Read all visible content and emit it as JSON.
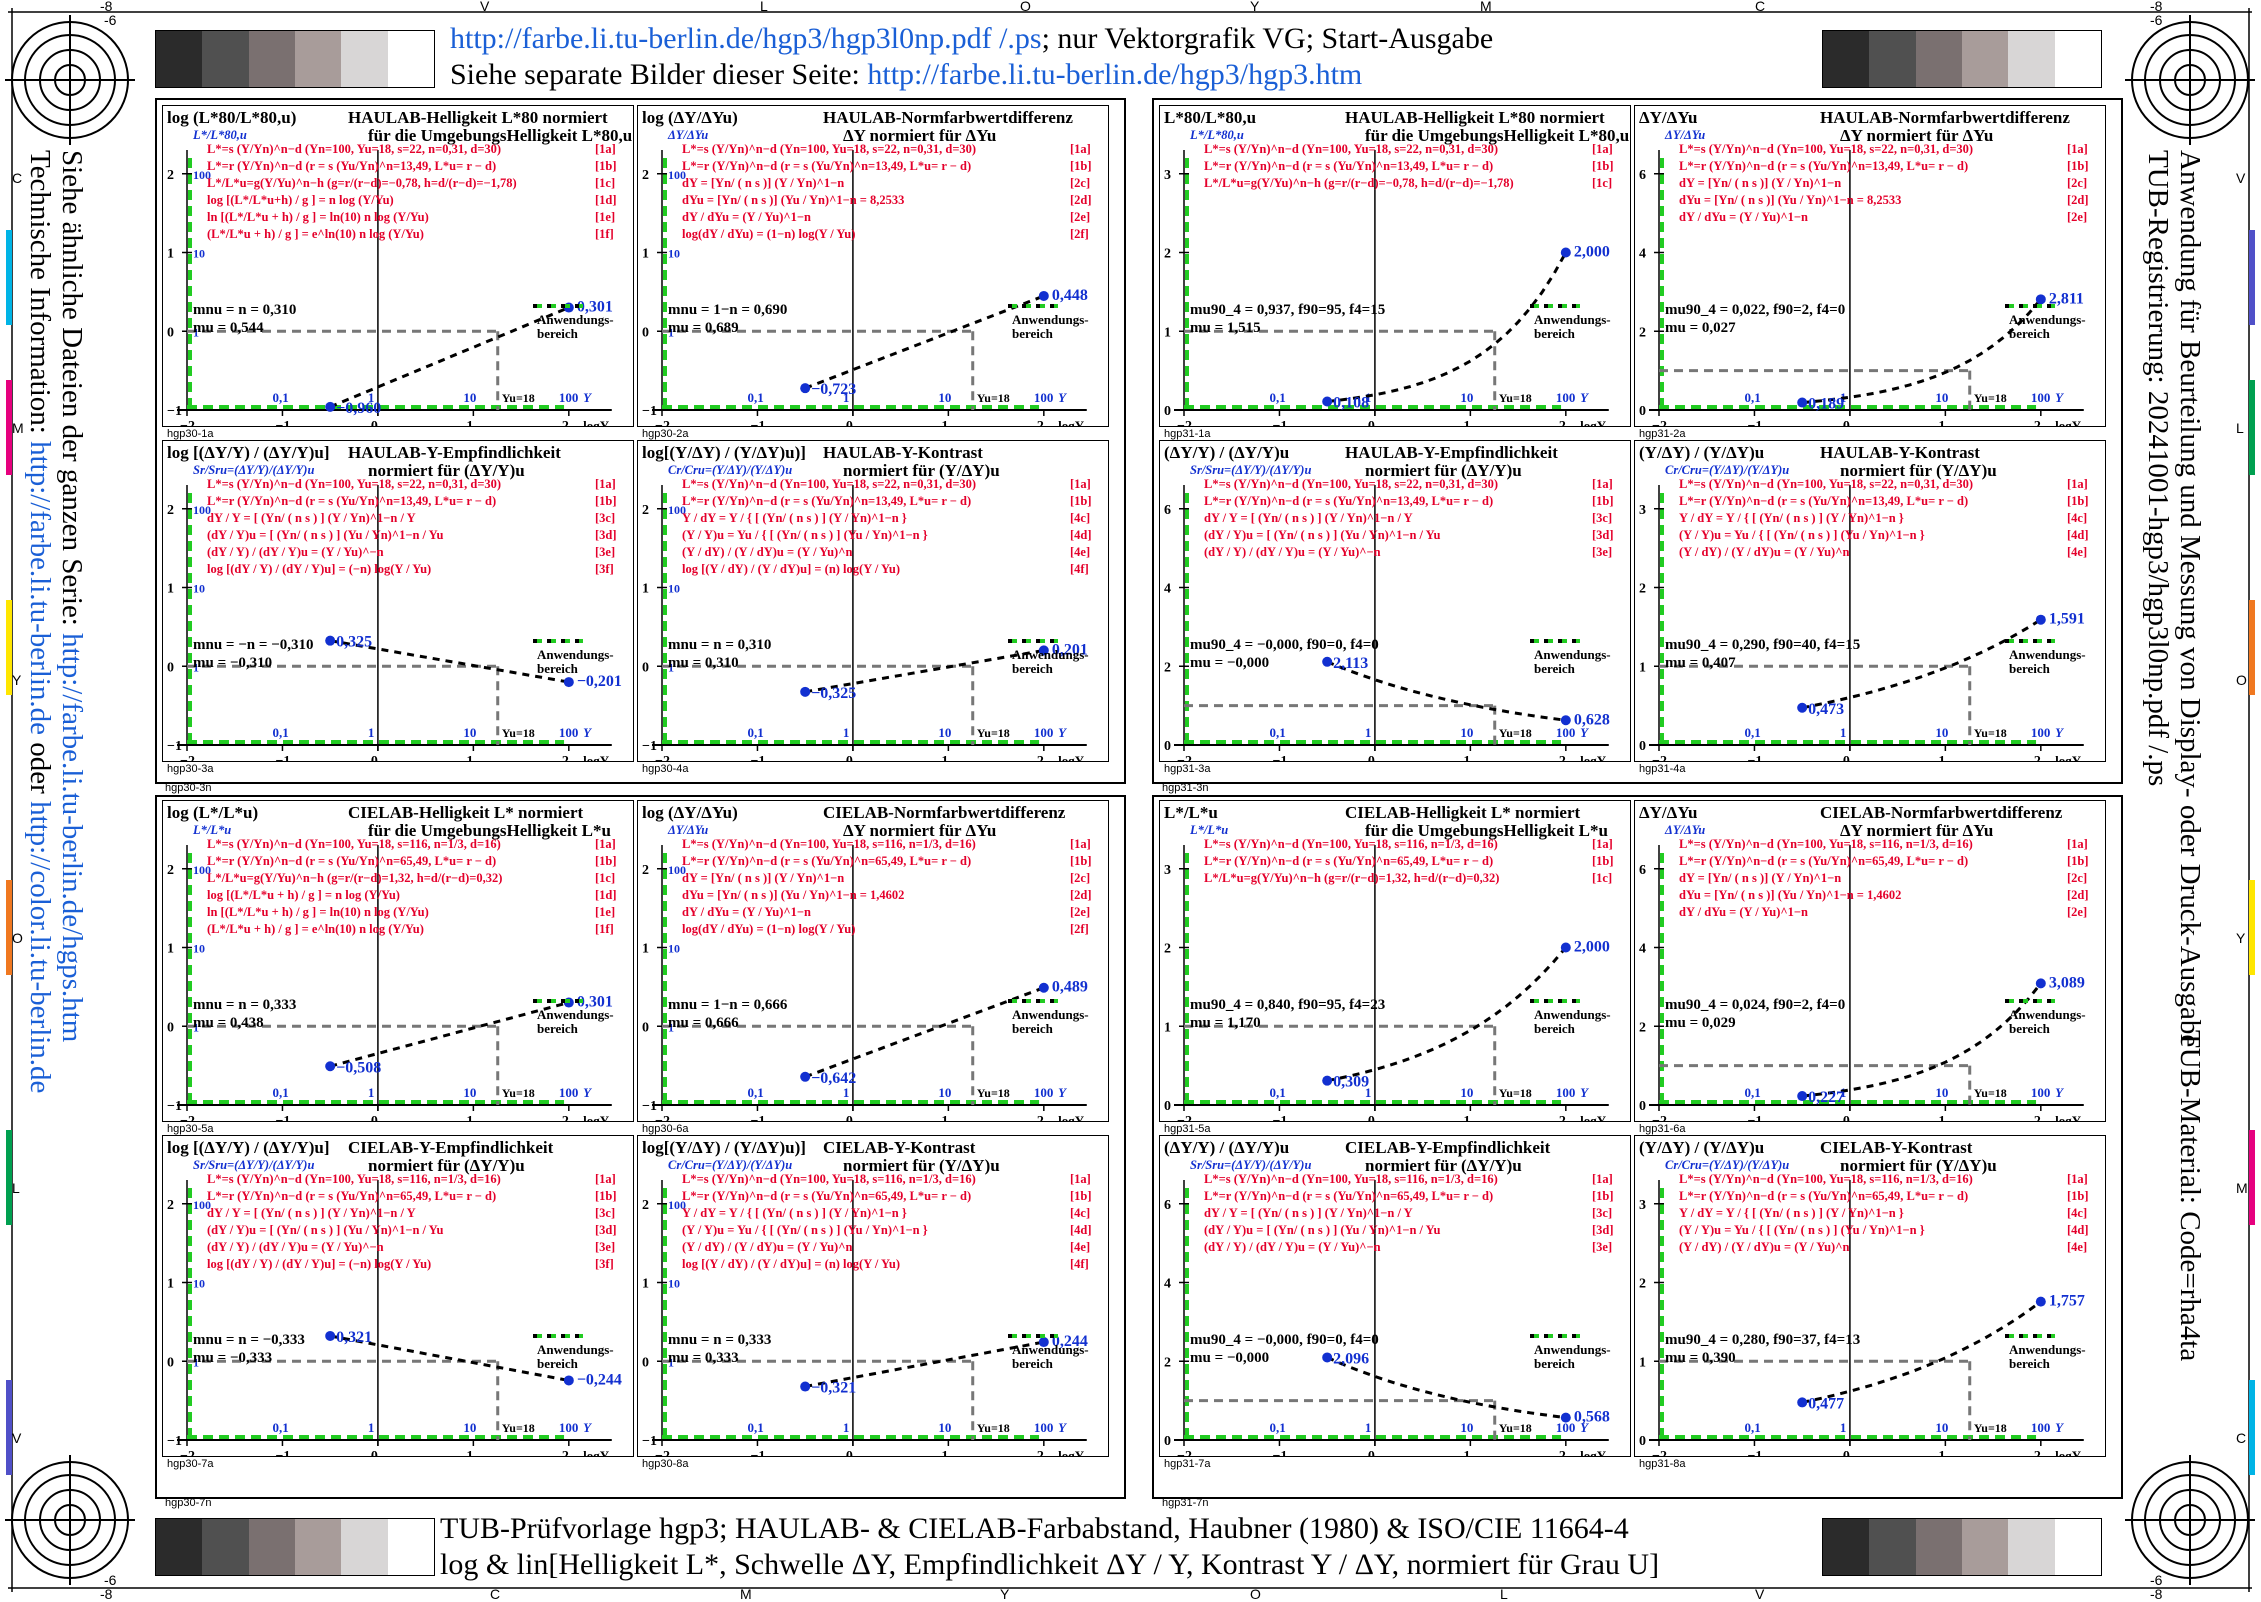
{
  "header": {
    "line1_link": "http://farbe.li.tu-berlin.de/hgp3/hgp3l0np.pdf /.ps",
    "line1_text": "; nur Vektorgrafik VG; Start-Ausgabe",
    "line2_text": "Siehe separate Bilder dieser Seite: ",
    "line2_link": "http://farbe.li.tu-berlin.de/hgp3/hgp3.htm"
  },
  "footer": {
    "line1": "TUB-Prüfvorlage hgp3; HAULAB- & CIELAB-Farbabstand, Haubner (1980) & ISO/CIE 11664-4",
    "line2": "log & lin[Helligkeit L*, Schwelle ΔY, Empfindlichkeit ΔY / Y, Kontrast Y / ΔY, normiert für Grau U]"
  },
  "left_side": {
    "line1_text": "Siehe ähnliche Dateien der ganzen Serie: ",
    "line1_link": "http://farbe.li.tu-berlin.de/hgps.htm",
    "line2_text": "Technische Information: ",
    "line2_link1": "http://farbe.li.tu-berlin.de",
    "line2_mid": " oder ",
    "line2_link2": "http://color.li.tu-berlin.de"
  },
  "right_side": {
    "line1": "TUB-Registrierung: 20241001-hgp3/hgp3l0np.pdf /.ps",
    "line2": "Anwendung für Beurteilung und Messung von Display- oder Druck-Ausgabe",
    "line3": "TUB-Material: Code=rha4ta"
  },
  "edge_labels": {
    "top": [
      "-8",
      "V",
      "L",
      "O",
      "Y",
      "M",
      "C",
      "-8"
    ],
    "top_inner": [
      "-6",
      "-6"
    ],
    "bottom": [
      "-8",
      "C",
      "M",
      "Y",
      "O",
      "L",
      "V",
      "-8"
    ],
    "bottom_inner": [
      "-6",
      "-6"
    ],
    "left": [
      "C",
      "M",
      "Y",
      "O",
      "L",
      "V"
    ],
    "right": [
      "V",
      "L",
      "O",
      "Y",
      "M",
      "C"
    ]
  },
  "gray_steps": [
    "#2b2b2b",
    "#505050",
    "#7a7070",
    "#a89c9a",
    "#d8d6d6",
    "#ffffff"
  ],
  "anwendung": "Anwendungs-",
  "anwendung2": "bereich",
  "yu_label": "Yu=18",
  "colors": {
    "blue": "#1230d0",
    "red": "#e4002b",
    "green": "#22cc22"
  },
  "panels": [
    {
      "id": "hgp30-1a",
      "ylab": "log (L*80/L*80,u)",
      "t1": "HAULAB-Helligkeit L*80 normiert",
      "t2": "für die UmgebungsHelligkeit L*80,u",
      "yaxlab": "L*/L*80,u",
      "forms": [
        "L*=s (Y/Yn)^n−d (Yn=100, Yu=18, s=22, n=0,31, d=30)",
        "L*=r (Y/Yn)^n−d (r = s (Yu/Yn)^n=13,49, L*u= r − d)",
        "L*/L*u=g(Y/Yu)^n−h (g=r/(r−d)=−0,78, h=d/(r−d)=−1,78)",
        "log [(L*/L*u+h) / g ] = n log (Y/Yu)",
        "ln [(L*/L*u + h) / g ] = ln(10) n log (Y/Yu)",
        "(L*/L*u + h) / g ] = e^ln(10) n log (Y/Yu)"
      ],
      "tags": [
        "[1a]",
        "[1b]",
        "[1c]",
        "[1d]",
        "[1e]",
        "[1f]"
      ],
      "n1": "mnu = n = 0,310",
      "n2": "mu = 0,544",
      "pv1": "−0,960",
      "pv2": "0,301",
      "kind": "log",
      "p1": -0.96,
      "p2": 0.301,
      "yref": 0,
      "sub": "hgp30-1a"
    },
    {
      "id": "hgp30-2a",
      "ylab": "log (ΔY/ΔYu)",
      "t1": "HAULAB-Normfarbwertdifferenz",
      "t2": "ΔY normiert für ΔYu",
      "yaxlab": "ΔY/ΔYu",
      "forms": [
        "L*=s (Y/Yn)^n−d (Yn=100, Yu=18, s=22, n=0,31, d=30)",
        "L*=r (Y/Yn)^n−d (r = s (Yu/Yn)^n=13,49, L*u= r − d)",
        "dY = [Yn/ ( n s )] (Y / Yn)^1−n",
        "dYu = [Yn/ ( n s )] (Yu / Yn)^1−n = 8,2533",
        "dY / dYu = (Y / Yu)^1−n",
        "log(dY / dYu) = (1−n) log(Y / Yu)"
      ],
      "tags": [
        "[1a]",
        "[1b]",
        "[2c]",
        "[2d]",
        "[2e]",
        "[2f]"
      ],
      "n1": "mnu = 1−n = 0,690",
      "n2": "mu = 0,689",
      "pv1": "−0,723",
      "pv2": "0,448",
      "kind": "log",
      "p1": -0.723,
      "p2": 0.448,
      "yref": 0,
      "sub": "hgp30-2a"
    },
    {
      "id": "hgp31-1a",
      "ylab": "L*80/L*80,u",
      "t1": "HAULAB-Helligkeit L*80 normiert",
      "t2": "für die UmgebungsHelligkeit L*80,u",
      "yaxlab": "L*/L*80,u",
      "forms": [
        "L*=s (Y/Yn)^n−d (Yn=100, Yu=18, s=22, n=0,31, d=30)",
        "L*=r (Y/Yn)^n−d (r = s (Yu/Yn)^n=13,49, L*u= r − d)",
        "L*/L*u=g(Y/Yu)^n−h (g=r/(r−d)=−0,78, h=d/(r−d)=−1,78)"
      ],
      "tags": [
        "[1a]",
        "[1b]",
        "[1c]"
      ],
      "n1": "mu90_4 = 0,937, f90=95, f4=15",
      "n2": "mu = 1,515",
      "pv1": "0,108",
      "pv2": "2,000",
      "kind": "lin3",
      "p1": 0.108,
      "p2": 2.0,
      "yref": 1,
      "sub": "hgp31-1a"
    },
    {
      "id": "hgp31-2a",
      "ylab": "ΔY/ΔYu",
      "t1": "HAULAB-Normfarbwertdifferenz",
      "t2": "ΔY normiert für ΔYu",
      "yaxlab": "ΔY/ΔYu",
      "forms": [
        "L*=s (Y/Yn)^n−d (Yn=100, Yu=18, s=22, n=0,31, d=30)",
        "L*=r (Y/Yn)^n−d (r = s (Yu/Yn)^n=13,49, L*u= r − d)",
        "dY = [Yn/ ( n s )] (Y / Yn)^1−n",
        "dYu = [Yn/ ( n s )] (Yu / Yn)^1−n = 8,2533",
        "dY / dYu = (Y / Yu)^1−n"
      ],
      "tags": [
        "[1a]",
        "[1b]",
        "[2c]",
        "[2d]",
        "[2e]"
      ],
      "n1": "mu90_4 = 0,022, f90=2, f4=0",
      "n2": "mu = 0,027",
      "pv1": "0,189",
      "pv2": "2,811",
      "kind": "lin6",
      "p1": 0.189,
      "p2": 2.811,
      "yref": 1,
      "sub": "hgp31-2a"
    },
    {
      "id": "hgp30-3a",
      "ylab": "log [(ΔY/Y) / (ΔY/Y)u]",
      "t1": "HAULAB-Y-Empfindlichkeit",
      "t2": "normiert für (ΔY/Y)u",
      "yaxlab": "Sr/Sru=(ΔY/Y)/(ΔY/Y)u",
      "forms": [
        "L*=s (Y/Yn)^n−d (Yn=100, Yu=18, s=22, n=0,31, d=30)",
        "L*=r (Y/Yn)^n−d (r = s (Yu/Yn)^n=13,49, L*u= r − d)",
        "dY / Y = [ (Yn/ ( n s ) ] (Y / Yn)^1−n / Y",
        "(dY / Y)u = [ (Yn/ ( n s ) ] (Yu / Yn)^1−n / Yu",
        "(dY / Y) / (dY / Y)u = (Y / Yu)^−n",
        "log [(dY / Y) / (dY / Y)u] = (−n) log(Y / Yu)"
      ],
      "tags": [
        "[1a]",
        "[1b]",
        "[3c]",
        "[3d]",
        "[3e]",
        "[3f]"
      ],
      "n1": "mnu = −n = −0,310",
      "n2": "mu = −0,310",
      "pv1": "0,325",
      "pv2": "−0,201",
      "kind": "log",
      "p1": 0.325,
      "p2": -0.201,
      "yref": 0,
      "sub": "hgp30-3a"
    },
    {
      "id": "hgp30-4a",
      "ylab": "log[(Y/ΔY) / (Y/ΔY)u)]",
      "t1": "HAULAB-Y-Kontrast",
      "t2": "normiert für (Y/ΔY)u",
      "yaxlab": "Cr/Cru=(Y/ΔY)/(Y/ΔY)u",
      "forms": [
        "L*=s (Y/Yn)^n−d (Yn=100, Yu=18, s=22, n=0,31, d=30)",
        "L*=r (Y/Yn)^n−d (r = s (Yu/Yn)^n=13,49, L*u= r − d)",
        "Y / dY = Y / { [ (Yn/ ( n s ) ] (Y / Yn)^1−n }",
        "(Y / Y)u = Yu / { [ (Yn/ ( n s ) ] (Yu / Yn)^1−n }",
        "(Y / dY) / (Y / dY)u = (Y / Yu)^n",
        "log [(Y / dY) / (Y / dY)u] = (n) log(Y / Yu)"
      ],
      "tags": [
        "[1a]",
        "[1b]",
        "[4c]",
        "[4d]",
        "[4e]",
        "[4f]"
      ],
      "n1": "mnu = n = 0,310",
      "n2": "mu = 0,310",
      "pv1": "−0,325",
      "pv2": "0,201",
      "kind": "log",
      "p1": -0.325,
      "p2": 0.201,
      "yref": 0,
      "sub": "hgp30-4a"
    },
    {
      "id": "hgp31-3a",
      "ylab": "(ΔY/Y) / (ΔY/Y)u",
      "t1": "HAULAB-Y-Empfindlichkeit",
      "t2": "normiert für (ΔY/Y)u",
      "yaxlab": "Sr/Sru=(ΔY/Y)/(ΔY/Y)u",
      "forms": [
        "L*=s (Y/Yn)^n−d (Yn=100, Yu=18, s=22, n=0,31, d=30)",
        "L*=r (Y/Yn)^n−d (r = s (Yu/Yn)^n=13,49, L*u= r − d)",
        "dY / Y = [ (Yn/ ( n s ) ] (Y / Yn)^1−n / Y",
        "(dY / Y)u = [ (Yn/ ( n s ) ] (Yu / Yn)^1−n / Yu",
        "(dY / Y) / (dY / Y)u = (Y / Yu)^−n"
      ],
      "tags": [
        "[1a]",
        "[1b]",
        "[3c]",
        "[3d]",
        "[3e]"
      ],
      "n1": "mu90_4 = −0,000, f90=0, f4=0",
      "n2": "mu = −0,000",
      "pv1": "2,113",
      "pv2": "0,628",
      "kind": "lin6",
      "p1": 2.113,
      "p2": 0.628,
      "yref": 1,
      "sub": "hgp31-3a"
    },
    {
      "id": "hgp31-4a",
      "ylab": "(Y/ΔY) / (Y/ΔY)u",
      "t1": "HAULAB-Y-Kontrast",
      "t2": "normiert für (Y/ΔY)u",
      "yaxlab": "Cr/Cru=(Y/ΔY)/(Y/ΔY)u",
      "forms": [
        "L*=s (Y/Yn)^n−d (Yn=100, Yu=18, s=22, n=0,31, d=30)",
        "L*=r (Y/Yn)^n−d (r = s (Yu/Yn)^n=13,49, L*u= r − d)",
        "Y / dY = Y / { [ (Yn/ ( n s ) ] (Y / Yn)^1−n }",
        "(Y / Y)u = Yu / { [ (Yn/ ( n s ) ] (Yu / Yn)^1−n }",
        "(Y / dY) / (Y / dY)u = (Y / Yu)^n"
      ],
      "tags": [
        "[1a]",
        "[1b]",
        "[4c]",
        "[4d]",
        "[4e]"
      ],
      "n1": "mu90_4 = 0,290, f90=40, f4=15",
      "n2": "mu = 0,407",
      "pv1": "0,473",
      "pv2": "1,591",
      "kind": "lin3",
      "p1": 0.473,
      "p2": 1.591,
      "yref": 1,
      "sub": "hgp31-4a"
    },
    {
      "id": "hgp30-5a",
      "ylab": "log (L*/L*u)",
      "t1": "CIELAB-Helligkeit L* normiert",
      "t2": "für die UmgebungsHelligkeit L*u",
      "yaxlab": "L*/L*u",
      "forms": [
        "L*=s (Y/Yn)^n−d (Yn=100, Yu=18, s=116, n=1/3, d=16)",
        "L*=r (Y/Yn)^n−d (r = s (Yu/Yn)^n=65,49, L*u= r − d)",
        "L*/L*u=g(Y/Yu)^n−h (g=r/(r−d)=1,32, h=d/(r−d)=0,32)",
        "log [(L*/L*u + h) / g ] = n log (Y/Yu)",
        "ln [(L*/L*u + h) / g ] = ln(10) n log (Y/Yu)",
        "(L*/L*u + h) / g ] = e^ln(10) n log (Y/Yu)"
      ],
      "tags": [
        "[1a]",
        "[1b]",
        "[1c]",
        "[1d]",
        "[1e]",
        "[1f]"
      ],
      "n1": "mnu = n = 0,333",
      "n2": "mu = 0,438",
      "pv1": "−0,508",
      "pv2": "0,301",
      "kind": "log",
      "p1": -0.508,
      "p2": 0.301,
      "yref": 0,
      "sub": "hgp30-5a"
    },
    {
      "id": "hgp30-6a",
      "ylab": "log (ΔY/ΔYu)",
      "t1": "CIELAB-Normfarbwertdifferenz",
      "t2": "ΔY normiert für ΔYu",
      "yaxlab": "ΔY/ΔYu",
      "forms": [
        "L*=s (Y/Yn)^n−d (Yn=100, Yu=18, s=116, n=1/3, d=16)",
        "L*=r (Y/Yn)^n−d (r = s (Yu/Yn)^n=65,49, L*u= r − d)",
        "dY = [Yn/ ( n s )] (Y / Yn)^1−n",
        "dYu = [Yn/ ( n s )] (Yu / Yn)^1−n = 1,4602",
        "dY / dYu = (Y / Yu)^1−n",
        "log(dY / dYu) = (1−n) log(Y / Yu)"
      ],
      "tags": [
        "[1a]",
        "[1b]",
        "[2c]",
        "[2d]",
        "[2e]",
        "[2f]"
      ],
      "n1": "mnu = 1−n = 0,666",
      "n2": "mu = 0,666",
      "pv1": "−0,642",
      "pv2": "0,489",
      "kind": "log",
      "p1": -0.642,
      "p2": 0.489,
      "yref": 0,
      "sub": "hgp30-6a"
    },
    {
      "id": "hgp31-5a",
      "ylab": "L*/L*u",
      "t1": "CIELAB-Helligkeit L* normiert",
      "t2": "für die UmgebungsHelligkeit L*u",
      "yaxlab": "L*/L*u",
      "forms": [
        "L*=s (Y/Yn)^n−d (Yn=100, Yu=18, s=116, n=1/3, d=16)",
        "L*=r (Y/Yn)^n−d (r = s (Yu/Yn)^n=65,49, L*u= r − d)",
        "L*/L*u=g(Y/Yu)^n−h (g=r/(r−d)=1,32, h=d/(r−d)=0,32)"
      ],
      "tags": [
        "[1a]",
        "[1b]",
        "[1c]"
      ],
      "n1": "mu90_4 = 0,840, f90=95, f4=23",
      "n2": "mu = 1,170",
      "pv1": "0,309",
      "pv2": "2,000",
      "kind": "lin3",
      "p1": 0.309,
      "p2": 2.0,
      "yref": 1,
      "sub": "hgp31-5a"
    },
    {
      "id": "hgp31-6a",
      "ylab": "ΔY/ΔYu",
      "t1": "CIELAB-Normfarbwertdifferenz",
      "t2": "ΔY normiert für ΔYu",
      "yaxlab": "ΔY/ΔYu",
      "forms": [
        "L*=s (Y/Yn)^n−d (Yn=100, Yu=18, s=116, n=1/3, d=16)",
        "L*=r (Y/Yn)^n−d (r = s (Yu/Yn)^n=65,49, L*u= r − d)",
        "dY = [Yn/ ( n s )] (Y / Yn)^1−n",
        "dYu = [Yn/ ( n s )] (Yu / Yn)^1−n = 1,4602",
        "dY / dYu = (Y / Yu)^1−n"
      ],
      "tags": [
        "[1a]",
        "[1b]",
        "[2c]",
        "[2d]",
        "[2e]"
      ],
      "n1": "mu90_4 = 0,024, f90=2, f4=0",
      "n2": "mu = 0,029",
      "pv1": "0,227",
      "pv2": "3,089",
      "kind": "lin6",
      "p1": 0.227,
      "p2": 3.089,
      "yref": 1,
      "sub": "hgp31-6a"
    },
    {
      "id": "hgp30-7a",
      "ylab": "log [(ΔY/Y) / (ΔY/Y)u]",
      "t1": "CIELAB-Y-Empfindlichkeit",
      "t2": "normiert für (ΔY/Y)u",
      "yaxlab": "Sr/Sru=(ΔY/Y)/(ΔY/Y)u",
      "forms": [
        "L*=s (Y/Yn)^n−d (Yn=100, Yu=18, s=116, n=1/3, d=16)",
        "L*=r (Y/Yn)^n−d (r = s (Yu/Yn)^n=65,49, L*u= r − d)",
        "dY / Y = [ (Yn/ ( n s ) ] (Y / Yn)^1−n / Y",
        "(dY / Y)u = [ (Yn/ ( n s ) ] (Yu / Yn)^1−n / Yu",
        "(dY / Y) / (dY / Y)u = (Y / Yu)^−n",
        "log [(dY / Y) / (dY / Y)u] = (−n) log(Y / Yu)"
      ],
      "tags": [
        "[1a]",
        "[1b]",
        "[3c]",
        "[3d]",
        "[3e]",
        "[3f]"
      ],
      "n1": "mnu = n = −0,333",
      "n2": "mu = −0,333",
      "pv1": "0,321",
      "pv2": "−0,244",
      "kind": "log",
      "p1": 0.321,
      "p2": -0.244,
      "yref": 0,
      "sub": "hgp30-7a"
    },
    {
      "id": "hgp30-8a",
      "ylab": "log[(Y/ΔY) / (Y/ΔY)u)]",
      "t1": "CIELAB-Y-Kontrast",
      "t2": "normiert für (Y/ΔY)u",
      "yaxlab": "Cr/Cru=(Y/ΔY)/(Y/ΔY)u",
      "forms": [
        "L*=s (Y/Yn)^n−d (Yn=100, Yu=18, s=116, n=1/3, d=16)",
        "L*=r (Y/Yn)^n−d (r = s (Yu/Yn)^n=65,49, L*u= r − d)",
        "Y / dY = Y / { [ (Yn/ ( n s ) ] (Y / Yn)^1−n }",
        "(Y / Y)u = Yu / { [ (Yn/ ( n s ) ] (Yu / Yn)^1−n }",
        "(Y / dY) / (Y / dY)u = (Y / Yu)^n",
        "log [(Y / dY) / (Y / dY)u] = (n) log(Y / Yu)"
      ],
      "tags": [
        "[1a]",
        "[1b]",
        "[4c]",
        "[4d]",
        "[4e]",
        "[4f]"
      ],
      "n1": "mnu = n = 0,333",
      "n2": "mu = 0,333",
      "pv1": "−0,321",
      "pv2": "0,244",
      "kind": "log",
      "p1": -0.321,
      "p2": 0.244,
      "yref": 0,
      "sub": "hgp30-8a"
    },
    {
      "id": "hgp31-7a",
      "ylab": "(ΔY/Y) / (ΔY/Y)u",
      "t1": "CIELAB-Y-Empfindlichkeit",
      "t2": "normiert für (ΔY/Y)u",
      "yaxlab": "Sr/Sru=(ΔY/Y)/(ΔY/Y)u",
      "forms": [
        "L*=s (Y/Yn)^n−d (Yn=100, Yu=18, s=116, n=1/3, d=16)",
        "L*=r (Y/Yn)^n−d (r = s (Yu/Yn)^n=65,49, L*u= r − d)",
        "dY / Y = [ (Yn/ ( n s ) ] (Y / Yn)^1−n / Y",
        "(dY / Y)u = [ (Yn/ ( n s ) ] (Yu / Yn)^1−n / Yu",
        "(dY / Y) / (dY / Y)u = (Y / Yu)^−n"
      ],
      "tags": [
        "[1a]",
        "[1b]",
        "[3c]",
        "[3d]",
        "[3e]"
      ],
      "n1": "mu90_4 = −0,000, f90=0, f4=0",
      "n2": "mu = −0,000",
      "pv1": "2,096",
      "pv2": "0,568",
      "kind": "lin6",
      "p1": 2.096,
      "p2": 0.568,
      "yref": 1,
      "sub": "hgp31-7a"
    },
    {
      "id": "hgp31-8a",
      "ylab": "(Y/ΔY) / (Y/ΔY)u",
      "t1": "CIELAB-Y-Kontrast",
      "t2": "normiert für (Y/ΔY)u",
      "yaxlab": "Cr/Cru=(Y/ΔY)/(Y/ΔY)u",
      "forms": [
        "L*=s (Y/Yn)^n−d (Yn=100, Yu=18, s=116, n=1/3, d=16)",
        "L*=r (Y/Yn)^n−d (r = s (Yu/Yn)^n=65,49, L*u= r − d)",
        "Y / dY = Y / { [ (Yn/ ( n s ) ] (Y / Yn)^1−n }",
        "(Y / Y)u = Yu / { [ (Yn/ ( n s ) ] (Yu / Yn)^1−n }",
        "(Y / dY) / (Y / dY)u = (Y / Yu)^n"
      ],
      "tags": [
        "[1a]",
        "[1b]",
        "[4c]",
        "[4d]",
        "[4e]"
      ],
      "n1": "mu90_4 = 0,280, f90=37, f4=13",
      "n2": "mu = 0,390",
      "pv1": "0,477",
      "pv2": "1,757",
      "kind": "lin3",
      "p1": 0.477,
      "p2": 1.757,
      "yref": 1,
      "sub": "hgp31-8a"
    }
  ],
  "quad_labels": [
    "hgp30-3n",
    "hgp31-3n",
    "hgp30-7n",
    "hgp31-7n"
  ],
  "chart_data": {
    "type": "line",
    "x_axis_label": "logY",
    "x_ticks": [
      "−2",
      "−1",
      "0",
      "1",
      "2"
    ],
    "x_ticks_Y": [
      "0,1",
      "1",
      "10",
      "100"
    ],
    "log_y_ticks": [
      "−1",
      "0",
      "1",
      "2"
    ],
    "log_y_ticks_lin": [
      "0,1",
      "1",
      "10",
      "100"
    ],
    "lin3_y_ticks": [
      "0",
      "1",
      "2",
      "3"
    ],
    "lin6_y_ticks": [
      "0",
      "2",
      "4",
      "6"
    ],
    "x_range": [
      -2,
      2.4
    ],
    "marker_x": [
      -0.5,
      2
    ]
  }
}
